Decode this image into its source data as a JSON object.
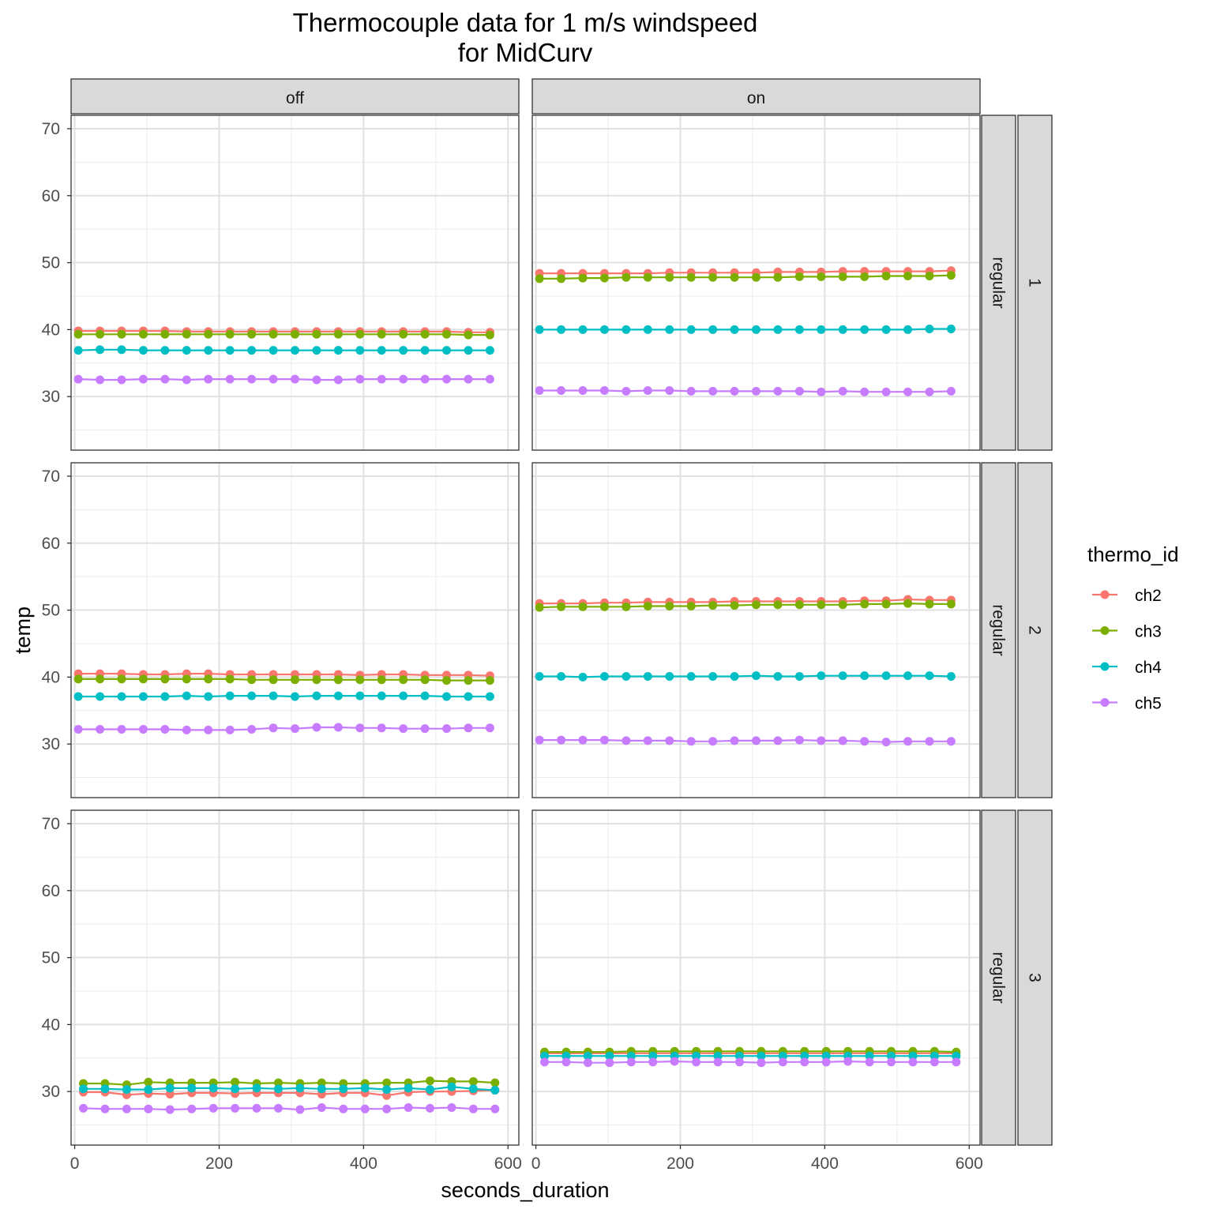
{
  "chart_data": {
    "type": "line",
    "title": "Thermocouple data for 1 m/s windspeed",
    "subtitle": "for MidCurv",
    "xlabel": "seconds_duration",
    "ylabel": "temp",
    "xlim": [
      -5,
      615
    ],
    "ylim": [
      22,
      72
    ],
    "x_ticks": [
      0,
      200,
      400,
      600
    ],
    "x_tick_labels": [
      "0",
      "200",
      "400",
      "600"
    ],
    "y_ticks": [
      30,
      40,
      50,
      60,
      70
    ],
    "y_tick_labels": [
      "30",
      "40",
      "50",
      "60",
      "70"
    ],
    "grid": true,
    "legend": {
      "title": "thermo_id",
      "placement": "right",
      "entries": [
        "ch2",
        "ch3",
        "ch4",
        "ch5"
      ]
    },
    "colors": {
      "ch2": "#F8766D",
      "ch3": "#7CAE00",
      "ch4": "#00BFC4",
      "ch5": "#C77CFF"
    },
    "col_strips": [
      "off",
      "on"
    ],
    "row_strips": [
      {
        "inner": "regular",
        "outer": "1"
      },
      {
        "inner": "regular",
        "outer": "2"
      },
      {
        "inner": "regular",
        "outer": "3"
      }
    ],
    "panels": [
      {
        "row": 0,
        "col": 0,
        "x": [
          5,
          35,
          65,
          95,
          125,
          155,
          185,
          215,
          245,
          275,
          305,
          335,
          365,
          395,
          425,
          455,
          485,
          515,
          545,
          575
        ],
        "series": [
          {
            "name": "ch2",
            "values": [
              39.8,
              39.8,
              39.8,
              39.8,
              39.8,
              39.7,
              39.7,
              39.7,
              39.7,
              39.7,
              39.7,
              39.7,
              39.7,
              39.7,
              39.7,
              39.7,
              39.7,
              39.7,
              39.6,
              39.6
            ]
          },
          {
            "name": "ch3",
            "values": [
              39.3,
              39.3,
              39.3,
              39.3,
              39.3,
              39.3,
              39.3,
              39.3,
              39.3,
              39.3,
              39.3,
              39.3,
              39.3,
              39.3,
              39.3,
              39.3,
              39.3,
              39.3,
              39.2,
              39.2
            ]
          },
          {
            "name": "ch4",
            "values": [
              36.9,
              37.0,
              37.0,
              36.9,
              36.9,
              36.9,
              36.9,
              36.9,
              36.9,
              36.9,
              36.9,
              36.9,
              36.9,
              36.9,
              36.9,
              36.9,
              36.9,
              36.9,
              36.9,
              36.9
            ]
          },
          {
            "name": "ch5",
            "values": [
              32.6,
              32.5,
              32.5,
              32.6,
              32.6,
              32.5,
              32.6,
              32.6,
              32.6,
              32.6,
              32.6,
              32.5,
              32.5,
              32.6,
              32.6,
              32.6,
              32.6,
              32.6,
              32.6,
              32.6
            ]
          }
        ]
      },
      {
        "row": 0,
        "col": 1,
        "x": [
          5,
          35,
          65,
          95,
          125,
          155,
          185,
          215,
          245,
          275,
          305,
          335,
          365,
          395,
          425,
          455,
          485,
          515,
          545,
          575
        ],
        "series": [
          {
            "name": "ch2",
            "values": [
              48.4,
              48.4,
              48.4,
              48.4,
              48.4,
              48.4,
              48.5,
              48.5,
              48.5,
              48.5,
              48.5,
              48.6,
              48.6,
              48.6,
              48.7,
              48.7,
              48.7,
              48.7,
              48.7,
              48.8
            ]
          },
          {
            "name": "ch3",
            "values": [
              47.6,
              47.6,
              47.7,
              47.7,
              47.8,
              47.8,
              47.8,
              47.8,
              47.8,
              47.8,
              47.8,
              47.8,
              47.9,
              47.9,
              47.9,
              47.9,
              48.0,
              48.0,
              48.0,
              48.1
            ]
          },
          {
            "name": "ch4",
            "values": [
              40.0,
              40.0,
              40.0,
              40.0,
              40.0,
              40.0,
              40.0,
              40.0,
              40.0,
              40.0,
              40.0,
              40.0,
              40.0,
              40.0,
              40.0,
              40.0,
              40.0,
              40.0,
              40.1,
              40.1
            ]
          },
          {
            "name": "ch5",
            "values": [
              30.9,
              30.9,
              30.9,
              30.9,
              30.8,
              30.9,
              30.9,
              30.8,
              30.8,
              30.8,
              30.8,
              30.8,
              30.8,
              30.7,
              30.8,
              30.7,
              30.7,
              30.7,
              30.7,
              30.8
            ]
          }
        ]
      },
      {
        "row": 1,
        "col": 0,
        "x": [
          5,
          35,
          65,
          95,
          125,
          155,
          185,
          215,
          245,
          275,
          305,
          335,
          365,
          395,
          425,
          455,
          485,
          515,
          545,
          575
        ],
        "series": [
          {
            "name": "ch2",
            "values": [
              40.5,
              40.5,
              40.5,
              40.4,
              40.4,
              40.5,
              40.5,
              40.4,
              40.4,
              40.4,
              40.4,
              40.4,
              40.4,
              40.3,
              40.4,
              40.4,
              40.3,
              40.3,
              40.3,
              40.2
            ]
          },
          {
            "name": "ch3",
            "values": [
              39.7,
              39.7,
              39.7,
              39.7,
              39.7,
              39.7,
              39.7,
              39.7,
              39.6,
              39.6,
              39.6,
              39.6,
              39.6,
              39.6,
              39.6,
              39.6,
              39.6,
              39.5,
              39.5,
              39.5
            ]
          },
          {
            "name": "ch4",
            "values": [
              37.1,
              37.1,
              37.1,
              37.1,
              37.1,
              37.2,
              37.1,
              37.2,
              37.2,
              37.2,
              37.1,
              37.2,
              37.2,
              37.2,
              37.2,
              37.2,
              37.2,
              37.1,
              37.1,
              37.1
            ]
          },
          {
            "name": "ch5",
            "values": [
              32.2,
              32.2,
              32.2,
              32.2,
              32.2,
              32.1,
              32.1,
              32.1,
              32.2,
              32.4,
              32.3,
              32.5,
              32.5,
              32.4,
              32.4,
              32.3,
              32.3,
              32.3,
              32.4,
              32.4
            ]
          }
        ]
      },
      {
        "row": 1,
        "col": 1,
        "x": [
          5,
          35,
          65,
          95,
          125,
          155,
          185,
          215,
          245,
          275,
          305,
          335,
          365,
          395,
          425,
          455,
          485,
          515,
          545,
          575
        ],
        "series": [
          {
            "name": "ch2",
            "values": [
              51.0,
              51.0,
              51.0,
              51.1,
              51.1,
              51.2,
              51.2,
              51.2,
              51.2,
              51.3,
              51.3,
              51.3,
              51.3,
              51.3,
              51.3,
              51.4,
              51.4,
              51.6,
              51.5,
              51.5
            ]
          },
          {
            "name": "ch3",
            "values": [
              50.4,
              50.5,
              50.5,
              50.5,
              50.5,
              50.6,
              50.6,
              50.6,
              50.7,
              50.7,
              50.8,
              50.8,
              50.8,
              50.8,
              50.8,
              50.9,
              50.9,
              51.0,
              50.9,
              50.9
            ]
          },
          {
            "name": "ch4",
            "values": [
              40.1,
              40.1,
              40.0,
              40.1,
              40.1,
              40.1,
              40.1,
              40.1,
              40.1,
              40.1,
              40.2,
              40.1,
              40.1,
              40.2,
              40.2,
              40.2,
              40.2,
              40.2,
              40.2,
              40.1
            ]
          },
          {
            "name": "ch5",
            "values": [
              30.6,
              30.6,
              30.6,
              30.6,
              30.5,
              30.5,
              30.5,
              30.4,
              30.4,
              30.5,
              30.5,
              30.5,
              30.6,
              30.5,
              30.5,
              30.4,
              30.3,
              30.4,
              30.4,
              30.4
            ]
          }
        ]
      },
      {
        "row": 2,
        "col": 0,
        "x": [
          12,
          42,
          72,
          102,
          132,
          162,
          192,
          222,
          252,
          282,
          312,
          342,
          372,
          402,
          432,
          462,
          492,
          522,
          552,
          582
        ],
        "series": [
          {
            "name": "ch2",
            "values": [
              29.9,
              29.9,
              29.5,
              29.7,
              29.6,
              29.8,
              29.8,
              29.7,
              29.8,
              29.8,
              29.8,
              29.6,
              29.8,
              29.8,
              29.4,
              29.9,
              30.0,
              30.0,
              30.1,
              30.2
            ]
          },
          {
            "name": "ch3",
            "values": [
              31.2,
              31.2,
              31.0,
              31.4,
              31.3,
              31.3,
              31.3,
              31.4,
              31.2,
              31.3,
              31.2,
              31.3,
              31.2,
              31.2,
              31.3,
              31.3,
              31.6,
              31.5,
              31.5,
              31.3
            ]
          },
          {
            "name": "ch4",
            "values": [
              30.4,
              30.4,
              30.3,
              30.3,
              30.5,
              30.5,
              30.5,
              30.4,
              30.5,
              30.4,
              30.5,
              30.4,
              30.4,
              30.5,
              30.3,
              30.5,
              30.3,
              30.7,
              30.4,
              30.2
            ]
          },
          {
            "name": "ch5",
            "values": [
              27.5,
              27.4,
              27.4,
              27.4,
              27.3,
              27.4,
              27.5,
              27.5,
              27.5,
              27.5,
              27.3,
              27.6,
              27.4,
              27.4,
              27.4,
              27.6,
              27.5,
              27.6,
              27.4,
              27.4
            ]
          }
        ]
      },
      {
        "row": 2,
        "col": 1,
        "x": [
          12,
          42,
          72,
          102,
          132,
          162,
          192,
          222,
          252,
          282,
          312,
          342,
          372,
          402,
          432,
          462,
          492,
          522,
          552,
          582
        ],
        "series": [
          {
            "name": "ch2",
            "values": [
              35.7,
              35.7,
              35.7,
              35.7,
              35.7,
              35.7,
              35.7,
              35.7,
              35.7,
              35.7,
              35.7,
              35.7,
              35.7,
              35.7,
              35.7,
              35.7,
              35.7,
              35.7,
              35.7,
              35.7
            ]
          },
          {
            "name": "ch3",
            "values": [
              35.9,
              35.9,
              35.9,
              35.9,
              36.0,
              36.0,
              36.0,
              36.0,
              36.0,
              36.0,
              36.0,
              36.0,
              36.0,
              36.0,
              36.0,
              36.0,
              36.0,
              36.0,
              36.0,
              35.9
            ]
          },
          {
            "name": "ch4",
            "values": [
              35.3,
              35.3,
              35.3,
              35.3,
              35.3,
              35.3,
              35.3,
              35.3,
              35.3,
              35.3,
              35.3,
              35.3,
              35.3,
              35.3,
              35.3,
              35.3,
              35.3,
              35.3,
              35.3,
              35.3
            ]
          },
          {
            "name": "ch5",
            "values": [
              34.4,
              34.4,
              34.3,
              34.3,
              34.4,
              34.4,
              34.5,
              34.4,
              34.4,
              34.4,
              34.3,
              34.4,
              34.4,
              34.4,
              34.5,
              34.4,
              34.4,
              34.4,
              34.4,
              34.4
            ]
          }
        ]
      }
    ]
  }
}
